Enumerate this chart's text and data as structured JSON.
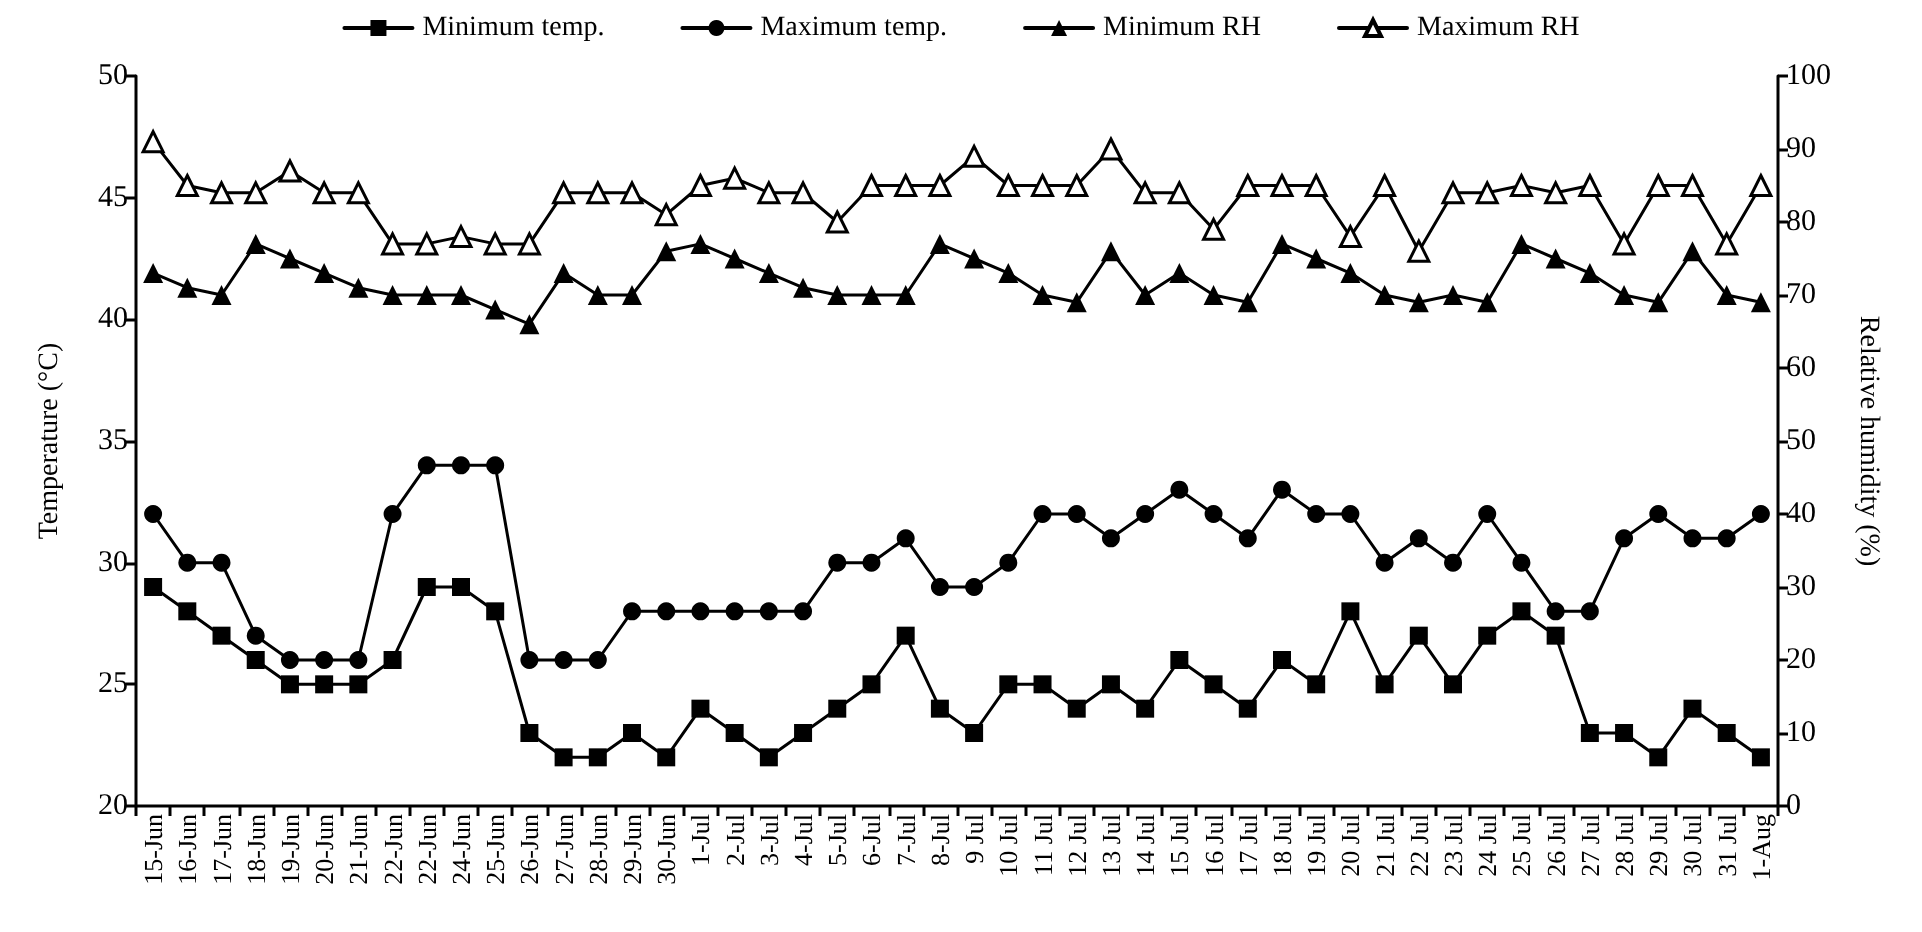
{
  "chart_data": {
    "type": "line",
    "ylabel": "Temperature (°C)",
    "y2label": "Relative humidity (%)",
    "categories": [
      "15-Jun",
      "16-Jun",
      "17-Jun",
      "18-Jun",
      "19-Jun",
      "20-Jun",
      "21-Jun",
      "22-Jun",
      "22-Jun",
      "24-Jun",
      "25-Jun",
      "26-Jun",
      "27-Jun",
      "28-Jun",
      "29-Jun",
      "30-Jun",
      "1-Jul",
      "2-Jul",
      "3-Jul",
      "4-Jul",
      "5-Jul",
      "6-Jul",
      "7-Jul",
      "8-Jul",
      "9 Jul",
      "10 Jul",
      "11 Jul",
      "12 Jul",
      "13 Jul",
      "14 Jul",
      "15 Jul",
      "16 Jul",
      "17 Jul",
      "18 Jul",
      "19 Jul",
      "20 Jul",
      "21 Jul",
      "22 Jul",
      "23 Jul",
      "24 Jul",
      "25 Jul",
      "26 Jul",
      "27 Jul",
      "28 Jul",
      "29 Jul",
      "30 Jul",
      "31 Jul",
      "1-Aug"
    ],
    "series": [
      {
        "name": "Minimum temp.",
        "color": "#000000",
        "marker": "square",
        "values": [
          29,
          28,
          27,
          26,
          25,
          25,
          25,
          26,
          29,
          29,
          28,
          23,
          22,
          22,
          23,
          22,
          24,
          23,
          22,
          23,
          24,
          25,
          27,
          24,
          23,
          25,
          25,
          24,
          25,
          24,
          26,
          25,
          24,
          26,
          25,
          28,
          25,
          27,
          25,
          27,
          28,
          27,
          23,
          23,
          22,
          24,
          23,
          22
        ]
      },
      {
        "name": "Maximum temp.",
        "color": "#000000",
        "marker": "circle",
        "values": [
          32,
          30,
          30,
          27,
          26,
          26,
          26,
          32,
          34,
          34,
          34,
          26,
          26,
          26,
          28,
          28,
          28,
          28,
          28,
          28,
          30,
          30,
          31,
          29,
          29,
          30,
          32,
          32,
          31,
          32,
          33,
          32,
          31,
          33,
          32,
          32,
          30,
          31,
          30,
          32,
          30,
          28,
          28,
          31,
          32,
          31,
          31,
          32
        ]
      },
      {
        "name": "Minimum RH",
        "color": "#000000",
        "marker": "triangle",
        "axis": "y2",
        "values": [
          73,
          71,
          70,
          77,
          75,
          73,
          71,
          70,
          70,
          70,
          68,
          66,
          73,
          70,
          70,
          76,
          77,
          75,
          73,
          71,
          70,
          70,
          70,
          77,
          75,
          73,
          70,
          69,
          76,
          70,
          73,
          70,
          69,
          77,
          75,
          73,
          70,
          69,
          70,
          69,
          77,
          75,
          73,
          70,
          69,
          76,
          70,
          69
        ]
      },
      {
        "name": "Maximum RH",
        "color": "#000000",
        "marker": "triangle",
        "axis": "y2",
        "values": [
          91,
          85,
          84,
          84,
          87,
          84,
          84,
          77,
          77,
          78,
          77,
          77,
          84,
          84,
          84,
          81,
          85,
          86,
          84,
          84,
          80,
          85,
          85,
          85,
          89,
          85,
          85,
          85,
          90,
          84,
          84,
          79,
          85,
          85,
          85,
          78,
          85,
          76,
          84,
          84,
          85,
          84,
          85,
          77,
          85,
          85,
          77,
          85
        ]
      }
    ],
    "ylim": [
      20,
      50
    ],
    "yticks": [
      20,
      25,
      30,
      35,
      40,
      45,
      50
    ],
    "y2lim": [
      0,
      100
    ],
    "y2ticks": [
      0,
      10,
      20,
      30,
      40,
      50,
      60,
      70,
      80,
      90,
      100
    ],
    "legend": "top",
    "grid": false,
    "line_style": "solid"
  }
}
